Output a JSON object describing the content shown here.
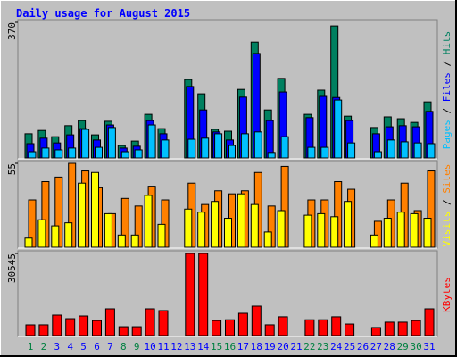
{
  "chart_data": [
    {
      "type": "bar",
      "title": "Daily usage for August 2015",
      "categories": [
        1,
        2,
        3,
        4,
        5,
        6,
        7,
        8,
        9,
        10,
        11,
        12,
        13,
        14,
        15,
        16,
        17,
        18,
        19,
        20,
        21,
        22,
        23,
        24,
        25,
        26,
        27,
        28,
        29,
        30,
        31
      ],
      "category_colors": [
        "#008040",
        "#008040",
        "#0000ff",
        "#0000ff",
        "#0000ff",
        "#0000ff",
        "#0000ff",
        "#008040",
        "#008040",
        "#0000ff",
        "#0000ff",
        "#0000ff",
        "#0000ff",
        "#0000ff",
        "#008040",
        "#008040",
        "#0000ff",
        "#0000ff",
        "#0000ff",
        "#0000ff",
        "#0000ff",
        "#008040",
        "#008040",
        "#0000ff",
        "#0000ff",
        "#0000ff",
        "#0000ff",
        "#0000ff",
        "#008040",
        "#008040",
        "#0000ff"
      ],
      "legend_separator": " / ",
      "series": [
        {
          "name": "Hits",
          "color": "#008060",
          "values": [
            66,
            75,
            58,
            88,
            102,
            63,
            100,
            34,
            46,
            119,
            80,
            0,
            214,
            175,
            78,
            73,
            187,
            316,
            131,
            217,
            0,
            119,
            185,
            360,
            114,
            0,
            83,
            112,
            107,
            97,
            153
          ]
        },
        {
          "name": "Files",
          "color": "#0000ff",
          "values": [
            39,
            54,
            41,
            63,
            80,
            49,
            90,
            27,
            32,
            102,
            66,
            0,
            195,
            131,
            71,
            49,
            166,
            285,
            102,
            180,
            0,
            110,
            168,
            165,
            102,
            0,
            66,
            85,
            88,
            85,
            127
          ]
        },
        {
          "name": "Pages",
          "color": "#00c0ff",
          "values": [
            17,
            27,
            22,
            27,
            78,
            29,
            83,
            17,
            22,
            90,
            49,
            0,
            51,
            54,
            66,
            34,
            66,
            71,
            15,
            58,
            0,
            29,
            29,
            158,
            41,
            0,
            17,
            49,
            44,
            41,
            39
          ]
        }
      ],
      "ylim": [
        0,
        370
      ],
      "yticks": [
        370
      ]
    },
    {
      "type": "bar",
      "legend_separator": " / ",
      "series": [
        {
          "name": "Sites",
          "color": "#ff8000",
          "values": [
            31,
            43,
            46,
            55,
            50,
            39,
            22,
            32,
            27,
            40,
            31,
            0,
            42,
            28,
            37,
            35,
            37,
            49,
            27,
            53,
            0,
            31,
            31,
            43,
            38,
            0,
            17,
            31,
            42,
            24,
            50
          ]
        },
        {
          "name": "Visits",
          "color": "#ffff00",
          "values": [
            6,
            18,
            14,
            16,
            42,
            49,
            22,
            8,
            8,
            34,
            15,
            0,
            25,
            23,
            30,
            19,
            35,
            28,
            10,
            24,
            0,
            21,
            22,
            20,
            30,
            0,
            8,
            19,
            23,
            22,
            19
          ]
        }
      ],
      "ylim": [
        0,
        55
      ],
      "yticks": [
        55
      ]
    },
    {
      "type": "bar",
      "series": [
        {
          "name": "KBytes",
          "color": "#ff0000",
          "values": [
            3985,
            4000,
            7636,
            6300,
            7300,
            5600,
            9960,
            3300,
            3300,
            9960,
            9300,
            0,
            30545,
            30545,
            5600,
            5900,
            8300,
            10960,
            4000,
            7000,
            0,
            5900,
            5900,
            7000,
            4300,
            0,
            3000,
            5000,
            5000,
            5600,
            9960
          ]
        }
      ],
      "ylim": [
        0,
        30545
      ],
      "yticks": [
        30545
      ]
    }
  ]
}
